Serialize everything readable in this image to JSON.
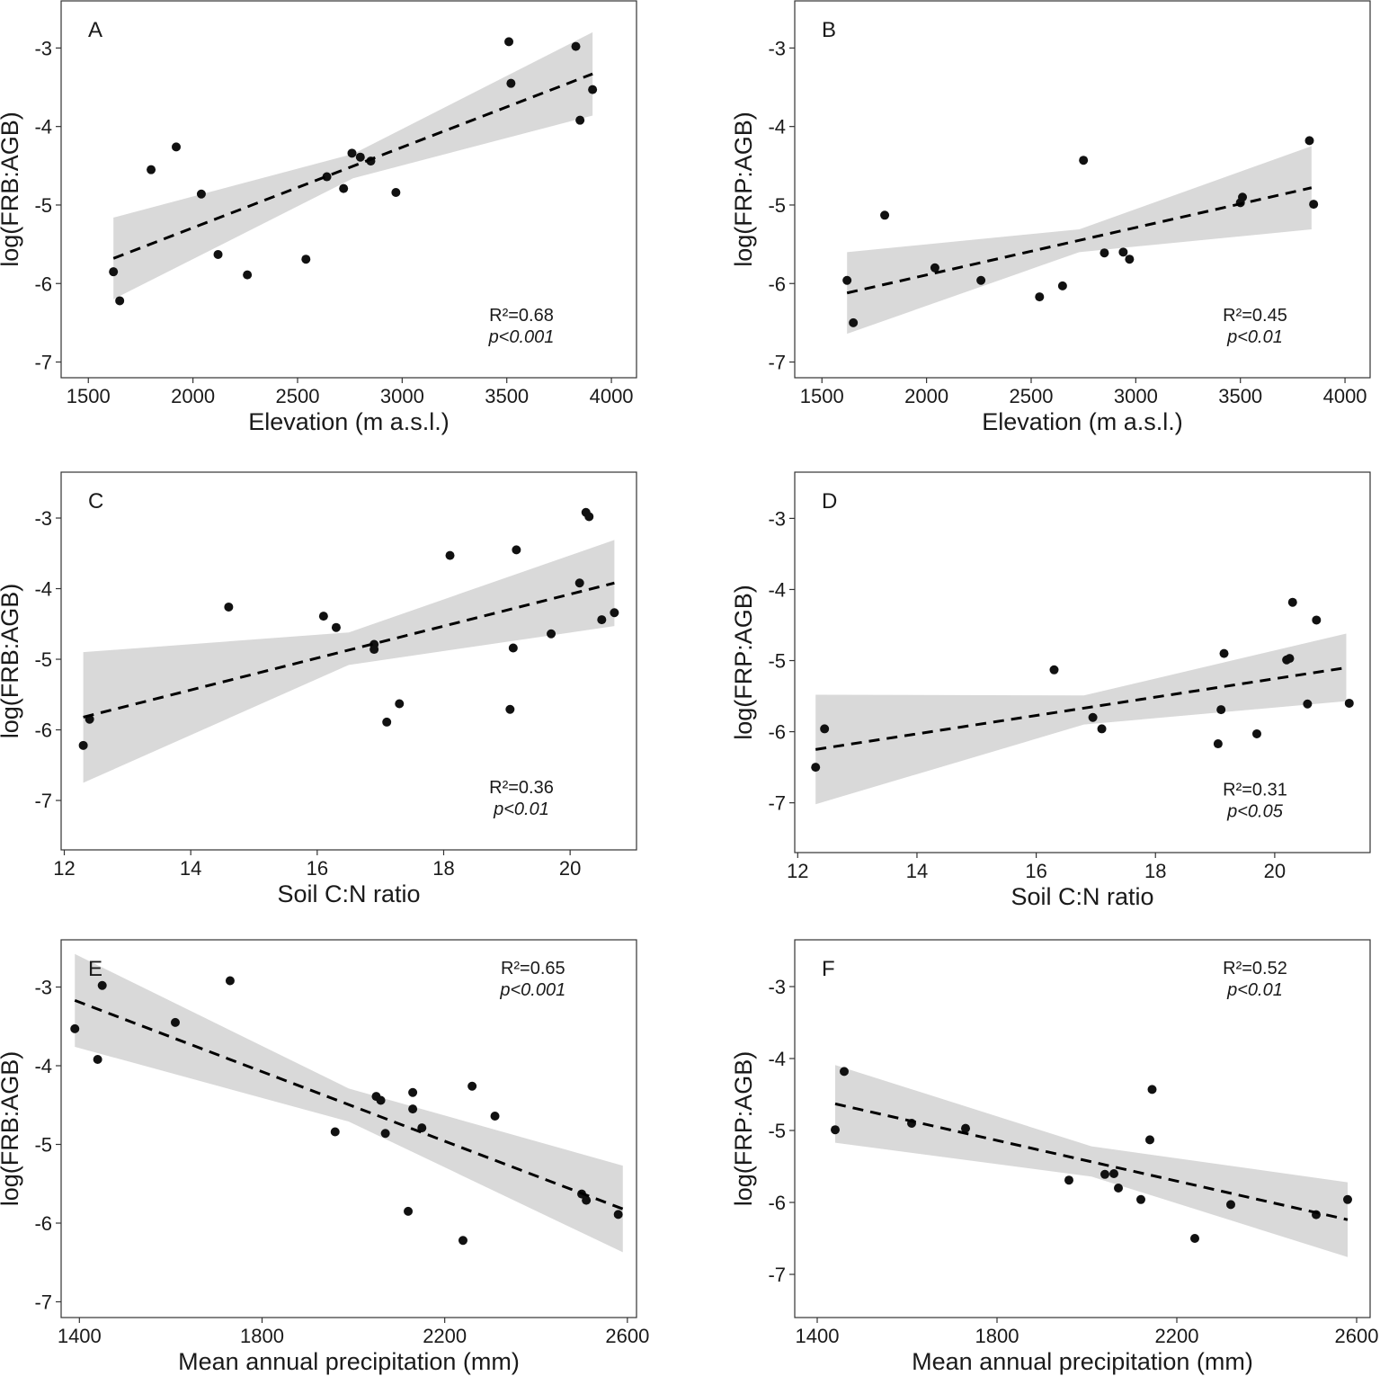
{
  "chart_data": [
    {
      "type": "scatter",
      "panel": "A",
      "xlabel": "Elevation (m a.s.l.)",
      "ylabel": "log(FRB:AGB)",
      "xlim": [
        1370,
        4120
      ],
      "ylim": [
        -7.2,
        -2.4
      ],
      "xticks": [
        1500,
        2000,
        2500,
        3000,
        3500,
        4000
      ],
      "yticks": [
        -7,
        -6,
        -5,
        -4,
        -3
      ],
      "xtick_labels": [
        "1500",
        "2000",
        "2500",
        "3000",
        "3500",
        "4000"
      ],
      "ytick_labels": [
        "-7",
        "-6",
        "-5",
        "-4",
        "-3"
      ],
      "r2": "R²=0.68",
      "p": "p<0.001",
      "stat_pos": "bottom-right",
      "fit": {
        "x": [
          1620,
          3910
        ],
        "y": [
          -5.68,
          -3.33
        ]
      },
      "band": {
        "x": [
          1620,
          2765,
          3910
        ],
        "upper": [
          -5.16,
          -4.35,
          -2.8
        ],
        "lower": [
          -6.2,
          -4.66,
          -3.86
        ]
      },
      "points": {
        "x": [
          1620,
          1650,
          1800,
          1920,
          2040,
          2120,
          2260,
          2540,
          2640,
          2720,
          2760,
          2800,
          2850,
          2970,
          3510,
          3520,
          3830,
          3850,
          3910
        ],
        "y": [
          -5.85,
          -6.22,
          -4.55,
          -4.26,
          -4.86,
          -5.63,
          -5.89,
          -5.69,
          -4.64,
          -4.79,
          -4.34,
          -4.39,
          -4.44,
          -4.84,
          -2.92,
          -3.45,
          -2.98,
          -3.92,
          -3.53
        ]
      }
    },
    {
      "type": "scatter",
      "panel": "B",
      "xlabel": "Elevation (m a.s.l.)",
      "ylabel": "log(FRP:AGB)",
      "xlim": [
        1370,
        4120
      ],
      "ylim": [
        -7.2,
        -2.4
      ],
      "xticks": [
        1500,
        2000,
        2500,
        3000,
        3500,
        4000
      ],
      "yticks": [
        -7,
        -6,
        -5,
        -4,
        -3
      ],
      "xtick_labels": [
        "1500",
        "2000",
        "2500",
        "3000",
        "3500",
        "4000"
      ],
      "ytick_labels": [
        "-7",
        "-6",
        "-5",
        "-4",
        "-3"
      ],
      "r2": "R²=0.45",
      "p": "p<0.01",
      "stat_pos": "bottom-right",
      "fit": {
        "x": [
          1620,
          3840
        ],
        "y": [
          -6.12,
          -4.78
        ]
      },
      "band": {
        "x": [
          1620,
          2730,
          3840
        ],
        "upper": [
          -5.6,
          -5.31,
          -4.25
        ],
        "lower": [
          -6.64,
          -5.6,
          -5.31
        ]
      },
      "points": {
        "x": [
          1620,
          1650,
          1800,
          2040,
          2260,
          2540,
          2650,
          2750,
          2850,
          2940,
          2970,
          3500,
          3510,
          3830,
          3850
        ],
        "y": [
          -5.96,
          -6.5,
          -5.13,
          -5.8,
          -5.96,
          -6.17,
          -6.03,
          -4.43,
          -5.61,
          -5.6,
          -5.69,
          -4.97,
          -4.9,
          -4.18,
          -4.99
        ]
      }
    },
    {
      "type": "scatter",
      "panel": "C",
      "xlabel": "Soil C:N ratio",
      "ylabel": "log(FRB:AGB)",
      "xlim": [
        11.95,
        21.05
      ],
      "ylim": [
        -7.7,
        -2.35
      ],
      "xticks": [
        12,
        14,
        16,
        18,
        20
      ],
      "yticks": [
        -7,
        -6,
        -5,
        -4,
        -3
      ],
      "xtick_labels": [
        "12",
        "14",
        "16",
        "18",
        "20"
      ],
      "ytick_labels": [
        "-7",
        "-6",
        "-5",
        "-4",
        "-3"
      ],
      "r2": "R²=0.36",
      "p": "p<0.01",
      "stat_pos": "bottom-right",
      "fit": {
        "x": [
          12.3,
          20.7
        ],
        "y": [
          -5.82,
          -3.92
        ]
      },
      "band": {
        "x": [
          12.3,
          16.5,
          20.7
        ],
        "upper": [
          -4.9,
          -4.62,
          -3.31
        ],
        "lower": [
          -6.75,
          -5.08,
          -4.53
        ]
      },
      "points": {
        "x": [
          12.3,
          12.4,
          14.6,
          16.1,
          16.3,
          16.9,
          16.9,
          17.1,
          17.3,
          18.1,
          19.05,
          19.1,
          19.15,
          19.7,
          20.15,
          20.25,
          20.3,
          20.5,
          20.7
        ],
        "y": [
          -6.22,
          -5.85,
          -4.26,
          -4.39,
          -4.55,
          -4.79,
          -4.86,
          -5.89,
          -5.63,
          -3.53,
          -5.71,
          -4.84,
          -3.45,
          -4.64,
          -3.92,
          -2.92,
          -2.98,
          -4.44,
          -4.34
        ]
      }
    },
    {
      "type": "scatter",
      "panel": "D",
      "xlabel": "Soil C:N ratio",
      "ylabel": "log(FRP:AGB)",
      "xlim": [
        11.95,
        21.6
      ],
      "ylim": [
        -7.7,
        -2.35
      ],
      "xticks": [
        12,
        14,
        16,
        18,
        20
      ],
      "yticks": [
        -7,
        -6,
        -5,
        -4,
        -3
      ],
      "xtick_labels": [
        "12",
        "14",
        "16",
        "18",
        "20"
      ],
      "ytick_labels": [
        "-7",
        "-6",
        "-5",
        "-4",
        "-3"
      ],
      "r2": "R²=0.31",
      "p": "p<0.05",
      "stat_pos": "bottom-right",
      "fit": {
        "x": [
          12.3,
          21.2
        ],
        "y": [
          -6.25,
          -5.1
        ]
      },
      "band": {
        "x": [
          12.3,
          16.8,
          21.2
        ],
        "upper": [
          -5.48,
          -5.49,
          -4.62
        ],
        "lower": [
          -7.02,
          -5.9,
          -5.57
        ]
      },
      "points": {
        "x": [
          12.3,
          12.45,
          16.3,
          16.95,
          17.1,
          19.05,
          19.1,
          19.15,
          19.7,
          20.2,
          20.25,
          20.3,
          20.55,
          20.7,
          21.25
        ],
        "y": [
          -6.5,
          -5.96,
          -5.13,
          -5.8,
          -5.96,
          -6.17,
          -5.69,
          -4.9,
          -6.03,
          -4.99,
          -4.97,
          -4.18,
          -5.61,
          -4.43,
          -5.6
        ]
      }
    },
    {
      "type": "scatter",
      "panel": "E",
      "xlabel": "Mean annual precipitation (mm)",
      "ylabel": "log(FRB:AGB)",
      "xlim": [
        1360,
        2620
      ],
      "ylim": [
        -7.2,
        -2.4
      ],
      "xticks": [
        1400,
        1800,
        2200,
        2600
      ],
      "yticks": [
        -7,
        -6,
        -5,
        -4,
        -3
      ],
      "xtick_labels": [
        "1400",
        "1800",
        "2200",
        "2600"
      ],
      "ytick_labels": [
        "-7",
        "-6",
        "-5",
        "-4",
        "-3"
      ],
      "r2": "R²=0.65",
      "p": "p<0.001",
      "stat_pos": "top-right",
      "fit": {
        "x": [
          1390,
          2590
        ],
        "y": [
          -3.17,
          -5.82
        ]
      },
      "band": {
        "x": [
          1390,
          1990,
          2590
        ],
        "upper": [
          -2.58,
          -4.29,
          -5.27
        ],
        "lower": [
          -3.76,
          -4.71,
          -6.37
        ]
      },
      "points": {
        "x": [
          1390,
          1440,
          1450,
          1610,
          1730,
          1960,
          2050,
          2060,
          2070,
          2120,
          2130,
          2130,
          2150,
          2240,
          2260,
          2310,
          2500,
          2510,
          2580
        ],
        "y": [
          -3.53,
          -3.92,
          -2.98,
          -3.45,
          -2.92,
          -4.84,
          -4.39,
          -4.44,
          -4.86,
          -5.85,
          -4.34,
          -4.55,
          -4.79,
          -6.22,
          -4.26,
          -4.64,
          -5.63,
          -5.71,
          -5.89
        ]
      }
    },
    {
      "type": "scatter",
      "panel": "F",
      "xlabel": "Mean annual precipitation (mm)",
      "ylabel": "log(FRP:AGB)",
      "xlim": [
        1350,
        2630
      ],
      "ylim": [
        -7.6,
        -2.35
      ],
      "xticks": [
        1400,
        1800,
        2200,
        2600
      ],
      "yticks": [
        -7,
        -6,
        -5,
        -4,
        -3
      ],
      "xtick_labels": [
        "1400",
        "1800",
        "2200",
        "2600"
      ],
      "ytick_labels": [
        "-7",
        "-6",
        "-5",
        "-4",
        "-3"
      ],
      "r2": "R²=0.52",
      "p": "p<0.01",
      "stat_pos": "top-left-mid",
      "fit": {
        "x": [
          1440,
          2580
        ],
        "y": [
          -4.63,
          -6.24
        ]
      },
      "band": {
        "x": [
          1440,
          2010,
          2580
        ],
        "upper": [
          -4.09,
          -5.22,
          -5.72
        ],
        "lower": [
          -5.17,
          -5.64,
          -6.76
        ]
      },
      "points": {
        "x": [
          1440,
          1460,
          1610,
          1730,
          1960,
          2040,
          2060,
          2070,
          2120,
          2140,
          2145,
          2240,
          2320,
          2510,
          2580
        ],
        "y": [
          -4.99,
          -4.18,
          -4.9,
          -4.97,
          -5.69,
          -5.61,
          -5.6,
          -5.8,
          -5.96,
          -5.13,
          -4.43,
          -6.5,
          -6.03,
          -6.17,
          -5.96
        ]
      }
    }
  ]
}
